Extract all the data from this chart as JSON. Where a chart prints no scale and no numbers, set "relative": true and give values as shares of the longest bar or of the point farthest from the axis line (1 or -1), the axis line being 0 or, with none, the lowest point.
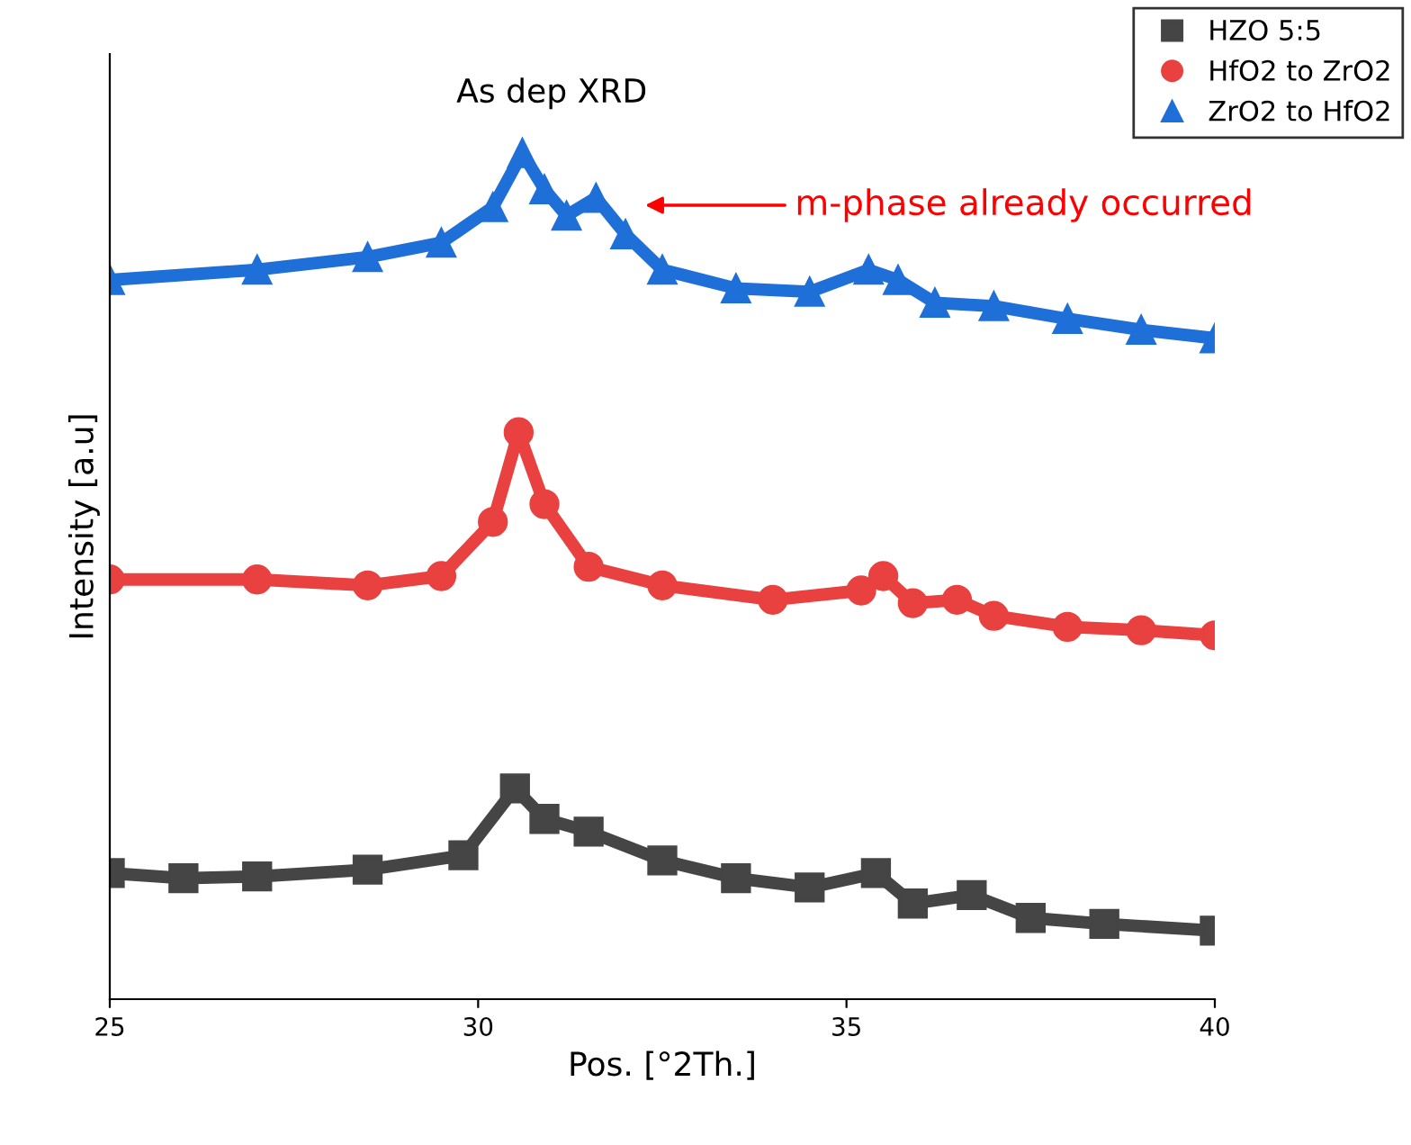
{
  "chart_data": {
    "type": "line",
    "relative": true,
    "title": "As dep XRD",
    "xlabel": "Pos. [°2Th.]",
    "ylabel": "Intensity [a.u]",
    "xlim": [
      25,
      40
    ],
    "xticks": [
      25,
      30,
      35,
      40
    ],
    "legend": "top right",
    "grid": false,
    "annotations": [
      "m-phase already occurred"
    ],
    "series": [
      {
        "name": "HZO 5:5",
        "color": "#454545",
        "marker": "square",
        "x": [
          25,
          26,
          27,
          28.5,
          29.8,
          30.5,
          30.9,
          31.5,
          32.5,
          33.5,
          34.5,
          35.4,
          35.9,
          36.7,
          37.5,
          38.5,
          40
        ],
        "values": [
          0.149,
          0.143,
          0.145,
          0.153,
          0.17,
          0.249,
          0.213,
          0.198,
          0.164,
          0.143,
          0.132,
          0.149,
          0.113,
          0.123,
          0.096,
          0.089,
          0.081
        ]
      },
      {
        "name": "HfO2 to ZrO2",
        "color": "#e8413f",
        "marker": "circle",
        "x": [
          25,
          27,
          28.5,
          29.5,
          30.2,
          30.55,
          30.9,
          31.5,
          32.5,
          34,
          35.2,
          35.5,
          35.9,
          36.5,
          37,
          38,
          39,
          40
        ],
        "values": [
          0.496,
          0.496,
          0.489,
          0.5,
          0.564,
          0.67,
          0.585,
          0.511,
          0.489,
          0.472,
          0.483,
          0.5,
          0.468,
          0.472,
          0.453,
          0.44,
          0.436,
          0.43
        ]
      },
      {
        "name": "ZrO2 to HfO2",
        "color": "#1f6fd8",
        "marker": "triangle",
        "x": [
          25,
          27,
          28.5,
          29.5,
          30.2,
          30.6,
          30.9,
          31.2,
          31.6,
          32,
          32.5,
          33.5,
          34.5,
          35.3,
          35.7,
          36.2,
          37,
          38,
          39,
          40
        ],
        "values": [
          0.85,
          0.862,
          0.877,
          0.894,
          0.936,
          1.0,
          0.957,
          0.926,
          0.947,
          0.904,
          0.862,
          0.84,
          0.836,
          0.862,
          0.85,
          0.823,
          0.819,
          0.804,
          0.791,
          0.781
        ]
      }
    ]
  }
}
